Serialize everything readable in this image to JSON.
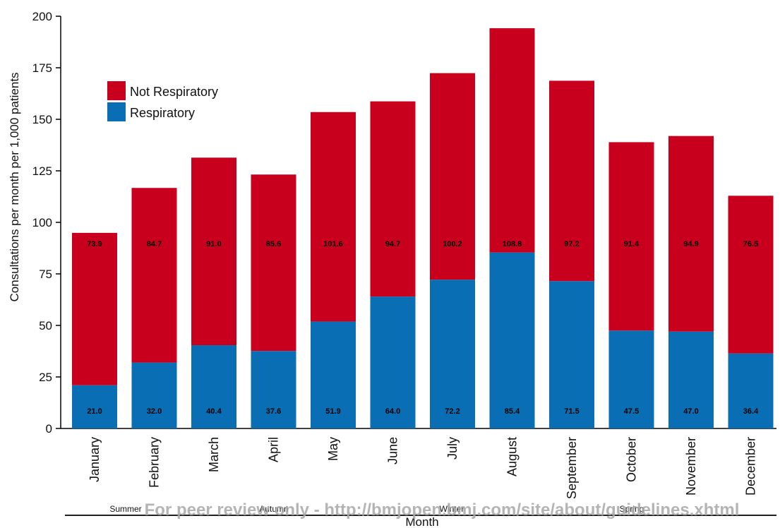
{
  "chart_data": {
    "type": "bar",
    "stacked": true,
    "categories": [
      "January",
      "February",
      "March",
      "April",
      "May",
      "June",
      "July",
      "August",
      "September",
      "October",
      "November",
      "December"
    ],
    "series": [
      {
        "name": "Respiratory",
        "color": "#0a6eb4",
        "values": [
          21.0,
          32.0,
          40.4,
          37.6,
          51.9,
          64.0,
          72.2,
          85.4,
          71.5,
          47.5,
          47.0,
          36.4
        ],
        "labels": [
          "21.0",
          "32.0",
          "40.4",
          "37.6",
          "51.9",
          "64.0",
          "72.2",
          "85.4",
          "71.5",
          "47.5",
          "47.0",
          "36.4"
        ]
      },
      {
        "name": "Not Respiratory",
        "color": "#c8001e",
        "values": [
          73.9,
          84.7,
          91.0,
          85.6,
          101.6,
          94.7,
          100.2,
          108.8,
          97.2,
          91.4,
          94.9,
          76.5
        ],
        "labels": [
          "73.9",
          "84.7",
          "91.0",
          "85.6",
          "101.6",
          "94.7",
          "100.2",
          "108.8",
          "97.2",
          "91.4",
          "94.9",
          "76.5"
        ]
      }
    ],
    "xlabel": "Month",
    "ylabel": "Consultations per month per 1,000 patients",
    "ylim": [
      0,
      200
    ],
    "yticks": [
      "0",
      "25",
      "50",
      "75",
      "100",
      "125",
      "150",
      "175",
      "200"
    ],
    "seasons": [
      "Summer",
      "Autumn",
      "Winter",
      "Spring"
    ],
    "legend": {
      "entries": [
        "Not Respiratory",
        "Respiratory"
      ],
      "placement": "top-left"
    },
    "grid": false
  },
  "watermark": "For peer review only - http://bmjopen.bmj.com/site/about/guidelines.xhtml"
}
